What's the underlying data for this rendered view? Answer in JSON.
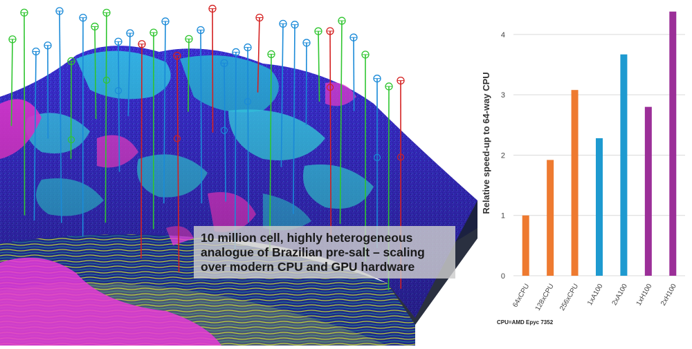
{
  "caption": {
    "line1": "10 million cell, highly heterogeneous",
    "line2": "analogue of Brazilian pre-salt – scaling",
    "line3": "over modern CPU and GPU hardware"
  },
  "colors": {
    "cpu": "#ee7a30",
    "a100": "#1e9ad0",
    "h100": "#9b2f98",
    "well_blue": "#1a8ad8",
    "well_green": "#2fc52f",
    "well_red": "#d42020"
  },
  "chart_data": {
    "type": "bar",
    "title": "",
    "xlabel": "",
    "ylabel": "Relative speed-up to 64-way CPU",
    "ylim": [
      0,
      4.4
    ],
    "yticks": [
      "0",
      "1",
      "2",
      "3",
      "4"
    ],
    "grid": true,
    "categories": [
      "64xCPU",
      "128xCPU",
      "256xCPU",
      "1xA100",
      "2xA100",
      "1xH100",
      "2xH100"
    ],
    "values": [
      1.0,
      1.92,
      3.08,
      2.28,
      3.67,
      2.8,
      4.38
    ],
    "groups": [
      "cpu",
      "cpu",
      "cpu",
      "a100",
      "a100",
      "h100",
      "h100"
    ],
    "footnote": "CPU=AMD Epyc 7352"
  }
}
